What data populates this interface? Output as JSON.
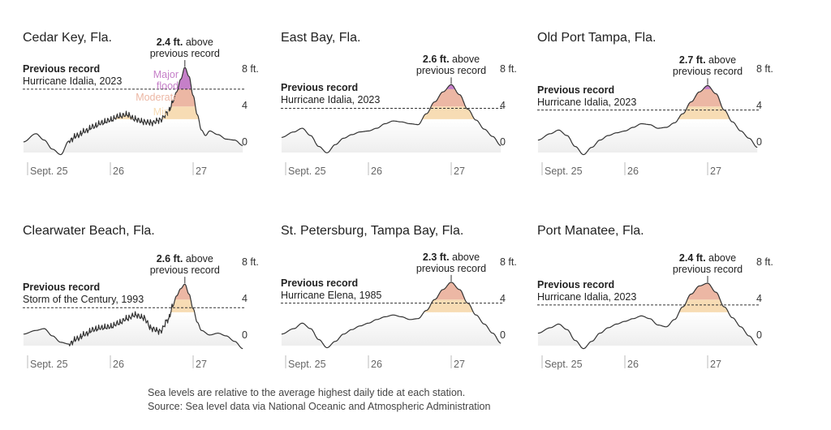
{
  "chart_data": [
    {
      "type": "area",
      "title": "Cedar Key, Fla.",
      "record_label": "Previous record",
      "record_event": "Hurricane Idalia, 2023",
      "record_ft": 5.9,
      "peak_ft": 8.3,
      "annotation_value": "2.4 ft.",
      "annotation_text_1": "above",
      "annotation_text_2": "previous record",
      "yticks": [
        {
          "v": 0,
          "label": "0"
        },
        {
          "v": 4,
          "label": "4"
        },
        {
          "v": 8,
          "label": "8 ft."
        }
      ],
      "xticks": [
        {
          "x": 0,
          "label": "Sept. 25"
        },
        {
          "x": 1,
          "label": "26"
        },
        {
          "x": 2,
          "label": "27"
        }
      ],
      "category_labels": [
        "Major flood",
        "Moderate",
        "Minor"
      ],
      "noisy": true,
      "x": [
        -0.05,
        0.1,
        0.2,
        0.3,
        0.4,
        0.5,
        0.6,
        0.7,
        0.8,
        0.9,
        1.0,
        1.1,
        1.2,
        1.3,
        1.4,
        1.5,
        1.6,
        1.7,
        1.75,
        1.8,
        1.85,
        1.9,
        1.95,
        2.0,
        2.05,
        2.1,
        2.15,
        2.2,
        2.3,
        2.4,
        2.5,
        2.6
      ],
      "y": [
        0.1,
        1.0,
        0.3,
        -0.7,
        -1.3,
        0.2,
        0.8,
        1.3,
        1.8,
        2.2,
        2.5,
        2.9,
        3.1,
        2.6,
        2.3,
        2.2,
        2.5,
        3.4,
        4.4,
        5.6,
        7.0,
        8.3,
        7.3,
        5.2,
        3.1,
        1.4,
        0.8,
        1.3,
        0.9,
        0.4,
        0.3,
        -0.3
      ]
    },
    {
      "type": "area",
      "title": "East Bay, Fla.",
      "record_label": "Previous record",
      "record_event": "Hurricane Idalia, 2023",
      "record_ft": 3.8,
      "peak_ft": 6.4,
      "annotation_value": "2.6 ft.",
      "annotation_text_1": "above",
      "annotation_text_2": "previous record",
      "yticks": [
        {
          "v": 0,
          "label": "0"
        },
        {
          "v": 4,
          "label": "4"
        },
        {
          "v": 8,
          "label": "8 ft."
        }
      ],
      "xticks": [
        {
          "x": 0,
          "label": "Sept. 25"
        },
        {
          "x": 1,
          "label": "26"
        },
        {
          "x": 2,
          "label": "27"
        }
      ],
      "category_labels": [],
      "noisy": false,
      "x": [
        -0.05,
        0.1,
        0.2,
        0.3,
        0.4,
        0.5,
        0.6,
        0.7,
        0.8,
        0.9,
        1.0,
        1.1,
        1.2,
        1.3,
        1.4,
        1.5,
        1.6,
        1.7,
        1.8,
        1.9,
        2.0,
        2.1,
        2.2,
        2.3,
        2.4,
        2.5,
        2.6
      ],
      "y": [
        0.6,
        1.2,
        1.6,
        0.8,
        -0.4,
        -1.1,
        -0.2,
        0.5,
        0.9,
        1.2,
        1.3,
        1.6,
        2.1,
        2.4,
        2.3,
        2.1,
        2.0,
        3.2,
        4.5,
        5.6,
        6.4,
        5.3,
        3.7,
        2.5,
        1.5,
        0.7,
        -0.3
      ]
    },
    {
      "type": "area",
      "title": "Old Port Tampa, Fla.",
      "record_label": "Previous record",
      "record_event": "Hurricane Idalia, 2023",
      "record_ft": 3.6,
      "peak_ft": 6.3,
      "annotation_value": "2.7 ft.",
      "annotation_text_1": "above",
      "annotation_text_2": "previous record",
      "yticks": [
        {
          "v": 0,
          "label": "0"
        },
        {
          "v": 4,
          "label": "4"
        },
        {
          "v": 8,
          "label": "8 ft."
        }
      ],
      "xticks": [
        {
          "x": 0,
          "label": "Sept. 25"
        },
        {
          "x": 1,
          "label": "26"
        },
        {
          "x": 2,
          "label": "27"
        }
      ],
      "category_labels": [],
      "noisy": false,
      "x": [
        -0.05,
        0.1,
        0.2,
        0.3,
        0.4,
        0.5,
        0.6,
        0.7,
        0.8,
        0.9,
        1.0,
        1.1,
        1.2,
        1.3,
        1.4,
        1.5,
        1.6,
        1.7,
        1.8,
        1.9,
        2.0,
        2.1,
        2.2,
        2.3,
        2.4,
        2.5,
        2.6
      ],
      "y": [
        0.3,
        1.0,
        1.4,
        0.8,
        -0.4,
        -1.3,
        -0.5,
        0.3,
        0.8,
        1.1,
        1.3,
        1.7,
        2.1,
        2.0,
        1.6,
        1.7,
        2.2,
        3.2,
        4.5,
        5.6,
        6.3,
        5.4,
        3.6,
        2.3,
        1.3,
        0.5,
        -0.5
      ]
    },
    {
      "type": "area",
      "title": "Clearwater Beach, Fla.",
      "record_label": "Previous record",
      "record_event": "Storm of the Century, 1993",
      "record_ft": 3.1,
      "peak_ft": 5.7,
      "annotation_value": "2.6 ft.",
      "annotation_text_1": "above",
      "annotation_text_2": "previous record",
      "yticks": [
        {
          "v": 0,
          "label": "0"
        },
        {
          "v": 4,
          "label": "4"
        },
        {
          "v": 8,
          "label": "8 ft."
        }
      ],
      "xticks": [
        {
          "x": 0,
          "label": "Sept. 25"
        },
        {
          "x": 1,
          "label": "26"
        },
        {
          "x": 2,
          "label": "27"
        }
      ],
      "category_labels": [],
      "noisy": true,
      "x": [
        -0.05,
        0.1,
        0.2,
        0.3,
        0.4,
        0.5,
        0.6,
        0.7,
        0.8,
        0.9,
        1.0,
        1.1,
        1.2,
        1.3,
        1.4,
        1.5,
        1.6,
        1.7,
        1.75,
        1.8,
        1.85,
        1.9,
        1.95,
        2.0,
        2.05,
        2.1,
        2.2,
        2.3,
        2.4,
        2.5,
        2.6
      ],
      "y": [
        0.2,
        0.6,
        0.8,
        0.0,
        -0.7,
        -0.9,
        -0.3,
        0.2,
        0.7,
        0.9,
        1.0,
        1.4,
        1.9,
        2.3,
        2.0,
        0.8,
        0.5,
        1.8,
        3.2,
        4.4,
        5.2,
        5.7,
        4.6,
        3.0,
        1.5,
        0.6,
        0.1,
        0.3,
        0.0,
        -0.6,
        -1.4
      ]
    },
    {
      "type": "area",
      "title": "St. Petersburg, Tampa Bay, Fla.",
      "record_label": "Previous record",
      "record_event": "Hurricane Elena, 1985",
      "record_ft": 3.6,
      "peak_ft": 5.9,
      "annotation_value": "2.3 ft.",
      "annotation_text_1": "above",
      "annotation_text_2": "previous record",
      "yticks": [
        {
          "v": 0,
          "label": "0"
        },
        {
          "v": 4,
          "label": "4"
        },
        {
          "v": 8,
          "label": "8 ft."
        }
      ],
      "xticks": [
        {
          "x": 0,
          "label": "Sept. 25"
        },
        {
          "x": 1,
          "label": "26"
        },
        {
          "x": 2,
          "label": "27"
        }
      ],
      "category_labels": [],
      "noisy": false,
      "x": [
        -0.05,
        0.1,
        0.2,
        0.3,
        0.4,
        0.5,
        0.6,
        0.7,
        0.8,
        0.9,
        1.0,
        1.1,
        1.2,
        1.3,
        1.4,
        1.5,
        1.6,
        1.7,
        1.8,
        1.9,
        2.0,
        2.1,
        2.2,
        2.3,
        2.4,
        2.5,
        2.6
      ],
      "y": [
        0.2,
        0.8,
        1.4,
        0.8,
        -0.4,
        -1.3,
        -0.6,
        0.2,
        0.7,
        1.1,
        1.4,
        1.8,
        2.1,
        2.3,
        2.1,
        1.8,
        1.9,
        2.8,
        4.0,
        5.1,
        5.9,
        5.1,
        3.6,
        2.3,
        1.3,
        0.3,
        -0.8
      ]
    },
    {
      "type": "area",
      "title": "Port Manatee, Fla.",
      "record_label": "Previous record",
      "record_event": "Hurricane Idalia, 2023",
      "record_ft": 3.4,
      "peak_ft": 5.8,
      "annotation_value": "2.4 ft.",
      "annotation_text_1": "above",
      "annotation_text_2": "previous record",
      "yticks": [
        {
          "v": 0,
          "label": "0"
        },
        {
          "v": 4,
          "label": "4"
        },
        {
          "v": 8,
          "label": "8 ft."
        }
      ],
      "xticks": [
        {
          "x": 0,
          "label": "Sept. 25"
        },
        {
          "x": 1,
          "label": "26"
        },
        {
          "x": 2,
          "label": "27"
        }
      ],
      "category_labels": [],
      "noisy": false,
      "x": [
        -0.05,
        0.1,
        0.2,
        0.3,
        0.4,
        0.5,
        0.6,
        0.7,
        0.8,
        0.9,
        1.0,
        1.1,
        1.2,
        1.3,
        1.4,
        1.5,
        1.6,
        1.7,
        1.8,
        1.9,
        2.0,
        2.1,
        2.2,
        2.3,
        2.4,
        2.5,
        2.6
      ],
      "y": [
        0.3,
        0.9,
        1.3,
        0.7,
        -0.5,
        -1.4,
        -0.6,
        0.3,
        0.9,
        1.3,
        1.6,
        1.9,
        2.2,
        1.9,
        1.2,
        1.0,
        1.8,
        3.2,
        4.6,
        5.5,
        5.8,
        4.8,
        3.2,
        2.0,
        1.0,
        0.0,
        -1.0
      ]
    }
  ],
  "notes": {
    "line1": "Sea levels are relative to the average highest daily tide at each station.",
    "line2": "Source: Sea level data via National Oceanic and Atmospheric Administration"
  },
  "colors": {
    "line": "#333333",
    "base_fill": "#eeeeee",
    "minor": "#f7dcb4",
    "moderate": "#ecb7a4",
    "major": "#c57fc8",
    "record_line": "#333333",
    "tick_text": "#666666"
  }
}
